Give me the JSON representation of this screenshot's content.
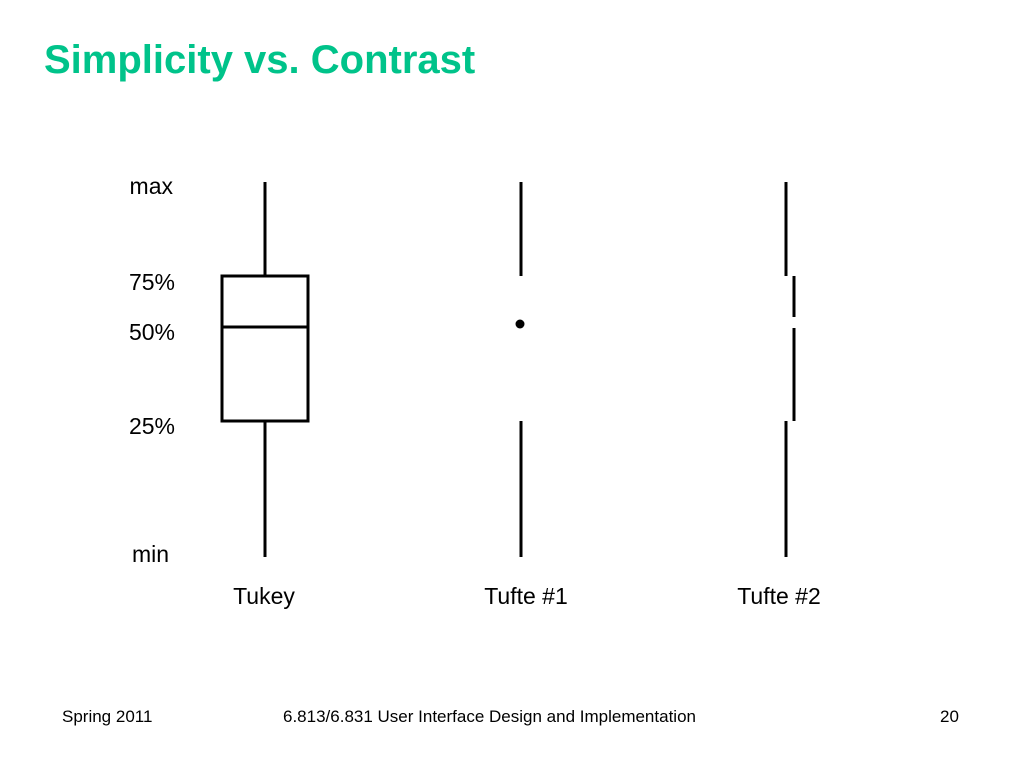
{
  "slide": {
    "title": "Simplicity vs. Contrast",
    "title_color": "#00c38a"
  },
  "diagram": {
    "axis_labels": [
      "max",
      "75%",
      "50%",
      "25%",
      "min"
    ],
    "plots": [
      {
        "name": "Tukey",
        "style": "box"
      },
      {
        "name": "Tufte #1",
        "style": "dot"
      },
      {
        "name": "Tufte #2",
        "style": "offset-line"
      }
    ],
    "stroke_color": "#000000"
  },
  "footer": {
    "left": "Spring 2011",
    "center": "6.813/6.831 User Interface Design and Implementation",
    "right": "20"
  }
}
